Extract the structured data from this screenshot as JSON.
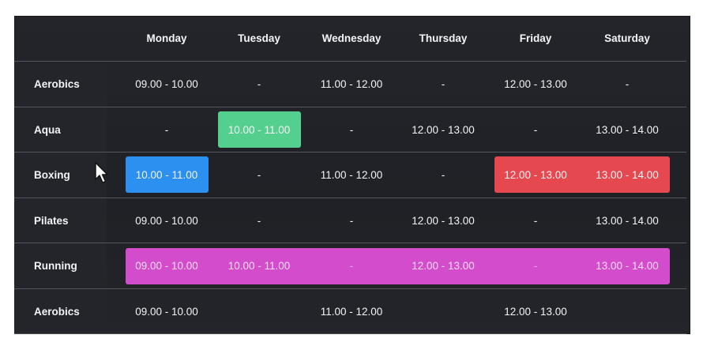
{
  "days": [
    "Monday",
    "Tuesday",
    "Wednesday",
    "Thursday",
    "Friday",
    "Saturday"
  ],
  "rows": [
    {
      "activity": "Aerobics",
      "cells": [
        "09.00 - 10.00",
        "-",
        "11.00 - 12.00",
        "-",
        "12.00 - 13.00",
        "-"
      ]
    },
    {
      "activity": "Aqua",
      "cells": [
        "-",
        "10.00 - 11.00",
        "-",
        "12.00 - 13.00",
        "-",
        "13.00 - 14.00"
      ]
    },
    {
      "activity": "Boxing",
      "cells": [
        "10.00 - 11.00",
        "-",
        "11.00 - 12.00",
        "-",
        "12.00 - 13.00",
        "13.00 - 14.00"
      ]
    },
    {
      "activity": "Pilates",
      "cells": [
        "09.00 - 10.00",
        "-",
        "-",
        "12.00 - 13.00",
        "-",
        "13.00 - 14.00"
      ]
    },
    {
      "activity": "Running",
      "cells": [
        "09.00 - 10.00",
        "10.00 - 11.00",
        "-",
        "12.00 - 13.00",
        "-",
        "13.00 - 14.00"
      ]
    },
    {
      "activity": "Aerobics",
      "cells": [
        "09.00 - 10.00",
        "",
        "11.00 - 12.00",
        "",
        "12.00 - 13.00",
        ""
      ]
    }
  ],
  "highlights": {
    "aqua_tuesday": "#55cf8d",
    "boxing_monday": "#2b90ef",
    "boxing_fri_sat": "#e5484e",
    "running_all": "#d34ccb"
  }
}
